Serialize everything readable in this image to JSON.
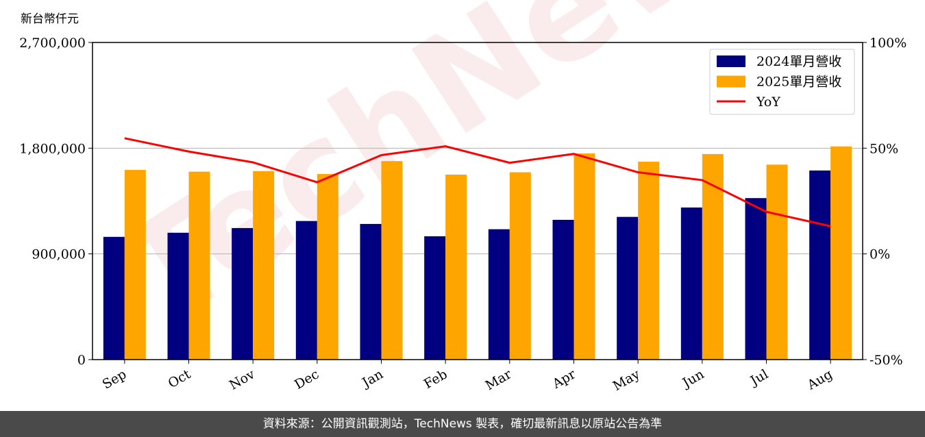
{
  "chart_data": {
    "type": "bar",
    "unit_label": "新台幣仟元",
    "categories": [
      "Sep",
      "Oct",
      "Nov",
      "Dec",
      "Jan",
      "Feb",
      "Mar",
      "Apr",
      "May",
      "Jun",
      "Jul",
      "Aug"
    ],
    "series": [
      {
        "name": "2024單月營收",
        "type": "bar",
        "color": "#000080",
        "values": [
          1045000,
          1080000,
          1120000,
          1180000,
          1155000,
          1050000,
          1110000,
          1190000,
          1215000,
          1295000,
          1375000,
          1610000
        ]
      },
      {
        "name": "2025單月營收",
        "type": "bar",
        "color": "#ffa500",
        "values": [
          1615000,
          1600000,
          1605000,
          1580000,
          1690000,
          1575000,
          1595000,
          1755000,
          1685000,
          1750000,
          1660000,
          1815000
        ]
      },
      {
        "name": "YoY",
        "type": "line",
        "axis": "right",
        "color": "#ff0000",
        "values": [
          54.7,
          48.4,
          43.3,
          33.9,
          46.7,
          50.9,
          43.1,
          47.3,
          38.6,
          34.9,
          19.9,
          13.1
        ]
      }
    ],
    "ylim": [
      0,
      2700000
    ],
    "yticks": [
      "0",
      "900,000",
      "1,800,000",
      "2,700,000"
    ],
    "y2lim": [
      -50,
      100
    ],
    "y2ticks": [
      "-50%",
      "0%",
      "50%",
      "100%"
    ],
    "grid": "horizontal",
    "legend_position": "top-right"
  },
  "watermark": "TechNews",
  "footer": "資料來源：公開資訊觀測站，TechNews 製表，確切最新訊息以原站公告為準"
}
